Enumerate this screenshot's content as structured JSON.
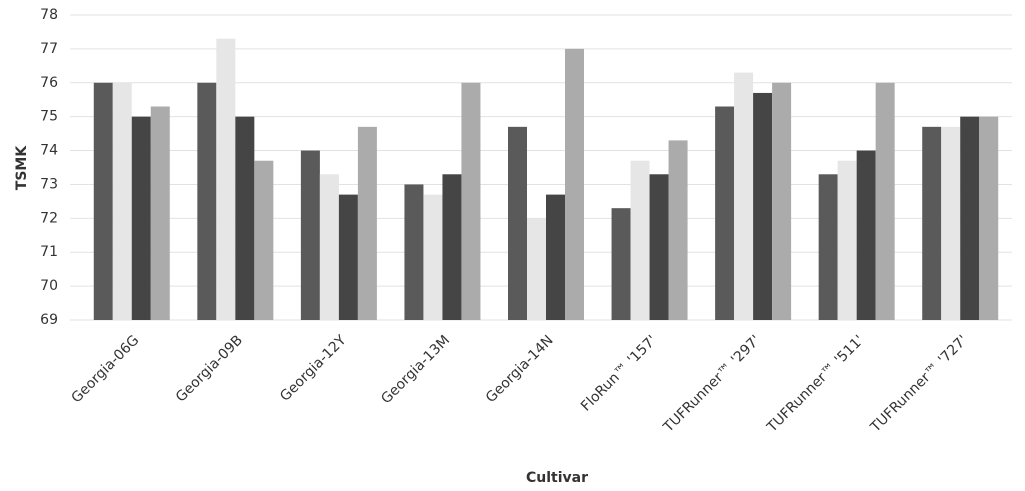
{
  "chart_data": {
    "type": "bar",
    "x_label": "Cultivar",
    "y_label": "TSMK",
    "categories": [
      "Georgia-06G",
      "Georgia-09B",
      "Georgia-12Y",
      "Georgia-13M",
      "Georgia-14N",
      "FloRun™ '157'",
      "TUFRunner™ '297'",
      "TUFRunner™ '511'",
      "TUFRunner™ '727'"
    ],
    "series": [
      {
        "color": "#5a5a5a",
        "values": [
          76,
          76,
          74,
          73,
          74.7,
          72.3,
          75.3,
          73.3,
          74.7
        ]
      },
      {
        "color": "#e6e6e6",
        "values": [
          76,
          77.3,
          73.3,
          72.7,
          72,
          73.7,
          76.3,
          73.7,
          74.7
        ]
      },
      {
        "color": "#454545",
        "values": [
          75,
          75,
          72.7,
          73.3,
          72.7,
          73.3,
          75.7,
          74,
          75
        ]
      },
      {
        "color": "#ababab",
        "values": [
          75.3,
          73.7,
          74.7,
          76,
          77,
          74.3,
          76,
          76,
          75
        ]
      }
    ],
    "ylim": [
      69,
      78
    ],
    "yticks": [
      69,
      70,
      71,
      72,
      73,
      74,
      75,
      76,
      77,
      78
    ],
    "grid": true
  }
}
